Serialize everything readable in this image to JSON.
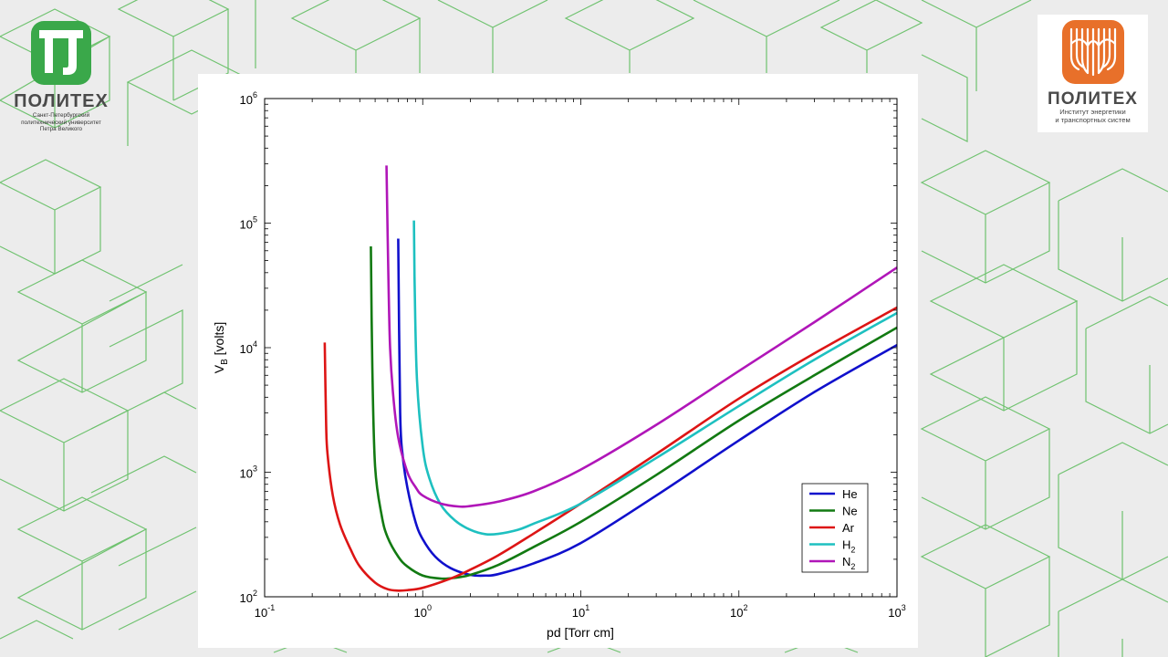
{
  "logos": {
    "left": {
      "name": "ПОЛИТЕХ",
      "subtitle_lines": [
        "Санкт-Петербургский",
        "политехнический университет",
        "Петра Великого"
      ],
      "color": "#3aa84a"
    },
    "right": {
      "name": "ПОЛИТЕХ",
      "subtitle_lines": [
        "Институт энергетики",
        "и транспортных систем"
      ],
      "color": "#e8702a"
    }
  },
  "chart_data": {
    "type": "line",
    "title": "",
    "xlabel": "pd [Torr cm]",
    "ylabel_main": "V",
    "ylabel_sub": "B",
    "ylabel_rest": " [volts]",
    "x_scale": "log",
    "y_scale": "log",
    "xlim": [
      0.1,
      1000
    ],
    "ylim": [
      100,
      1000000
    ],
    "x_ticks": [
      {
        "value": 0.1,
        "base": "10",
        "exp": "-1"
      },
      {
        "value": 1,
        "base": "10",
        "exp": "0"
      },
      {
        "value": 10,
        "base": "10",
        "exp": "1"
      },
      {
        "value": 100,
        "base": "10",
        "exp": "2"
      },
      {
        "value": 1000,
        "base": "10",
        "exp": "3"
      }
    ],
    "y_ticks": [
      {
        "value": 100,
        "base": "10",
        "exp": "2"
      },
      {
        "value": 1000,
        "base": "10",
        "exp": "3"
      },
      {
        "value": 10000,
        "base": "10",
        "exp": "4"
      },
      {
        "value": 100000,
        "base": "10",
        "exp": "5"
      },
      {
        "value": 1000000,
        "base": "10",
        "exp": "6"
      }
    ],
    "grid": false,
    "legend_position": "bottom-right",
    "series": [
      {
        "name": "He",
        "name_main": "He",
        "name_sub": "",
        "color": "#1010cc",
        "x": [
          0.7,
          0.72,
          0.75,
          0.8,
          0.9,
          1.0,
          1.2,
          1.5,
          2.0,
          2.5,
          3.0,
          5.0,
          10,
          30,
          100,
          300,
          1000
        ],
        "y": [
          75000,
          3000,
          1300,
          750,
          400,
          290,
          210,
          170,
          150,
          148,
          152,
          185,
          270,
          650,
          1800,
          4400,
          10500
        ]
      },
      {
        "name": "Ne",
        "name_main": "Ne",
        "name_sub": "",
        "color": "#127a12",
        "x": [
          0.47,
          0.48,
          0.5,
          0.55,
          0.6,
          0.7,
          0.8,
          1.0,
          1.3,
          1.6,
          2.0,
          3.0,
          5.0,
          10,
          30,
          100,
          300,
          1000
        ],
        "y": [
          65000,
          7000,
          1100,
          450,
          300,
          210,
          175,
          148,
          140,
          142,
          150,
          180,
          250,
          400,
          950,
          2600,
          6000,
          14500
        ]
      },
      {
        "name": "Ar",
        "name_main": "Ar",
        "name_sub": "",
        "color": "#dd1515",
        "x": [
          0.24,
          0.245,
          0.25,
          0.27,
          0.3,
          0.35,
          0.4,
          0.5,
          0.6,
          0.7,
          0.8,
          1.0,
          1.5,
          2.0,
          3.0,
          5.0,
          10,
          30,
          100,
          300,
          1000
        ],
        "y": [
          11000,
          2400,
          1400,
          650,
          380,
          240,
          175,
          130,
          115,
          112,
          113,
          118,
          140,
          165,
          215,
          320,
          560,
          1400,
          3900,
          9000,
          21000
        ]
      },
      {
        "name": "H2",
        "name_main": "H",
        "name_sub": "2",
        "color": "#1ec0c0",
        "x": [
          0.88,
          0.89,
          0.92,
          1.0,
          1.1,
          1.3,
          1.6,
          2.0,
          2.5,
          3.0,
          4.0,
          5.0,
          10,
          30,
          100,
          300,
          1000
        ],
        "y": [
          105000,
          30000,
          5500,
          1600,
          900,
          550,
          410,
          345,
          318,
          320,
          345,
          385,
          560,
          1300,
          3400,
          8000,
          19000
        ]
      },
      {
        "name": "N2",
        "name_main": "N",
        "name_sub": "2",
        "color": "#b016b8",
        "x": [
          0.59,
          0.6,
          0.62,
          0.65,
          0.7,
          0.8,
          0.9,
          1.0,
          1.3,
          1.7,
          2.0,
          3.0,
          5.0,
          10,
          30,
          100,
          300,
          1000
        ],
        "y": [
          290000,
          80000,
          11000,
          4200,
          1900,
          1000,
          760,
          650,
          560,
          530,
          535,
          580,
          700,
          1050,
          2400,
          6500,
          16000,
          44000
        ]
      }
    ]
  }
}
